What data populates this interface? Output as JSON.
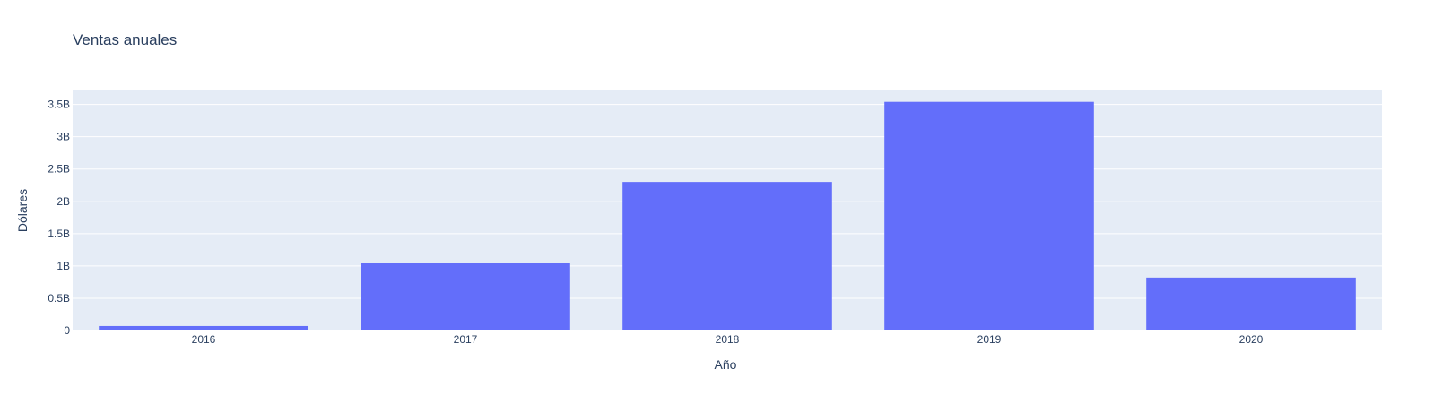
{
  "chart_data": {
    "type": "bar",
    "title": "Ventas anuales",
    "xlabel": "Año",
    "ylabel": "Dólares",
    "categories": [
      "2016",
      "2017",
      "2018",
      "2019",
      "2020"
    ],
    "values": [
      70000000,
      1040000000,
      2300000000,
      3540000000,
      820000000
    ],
    "ylim": [
      0,
      3730000000
    ],
    "yticks": [
      0,
      500000000,
      1000000000,
      1500000000,
      2000000000,
      2500000000,
      3000000000,
      3500000000
    ],
    "ytick_labels": [
      "0",
      "0.5B",
      "1B",
      "1.5B",
      "2B",
      "2.5B",
      "3B",
      "3.5B"
    ],
    "grid": true,
    "colors": {
      "bar": "#636efa",
      "plot_background": "#e5ecf6",
      "grid": "#ffffff",
      "text": "#2a3f5f"
    }
  }
}
